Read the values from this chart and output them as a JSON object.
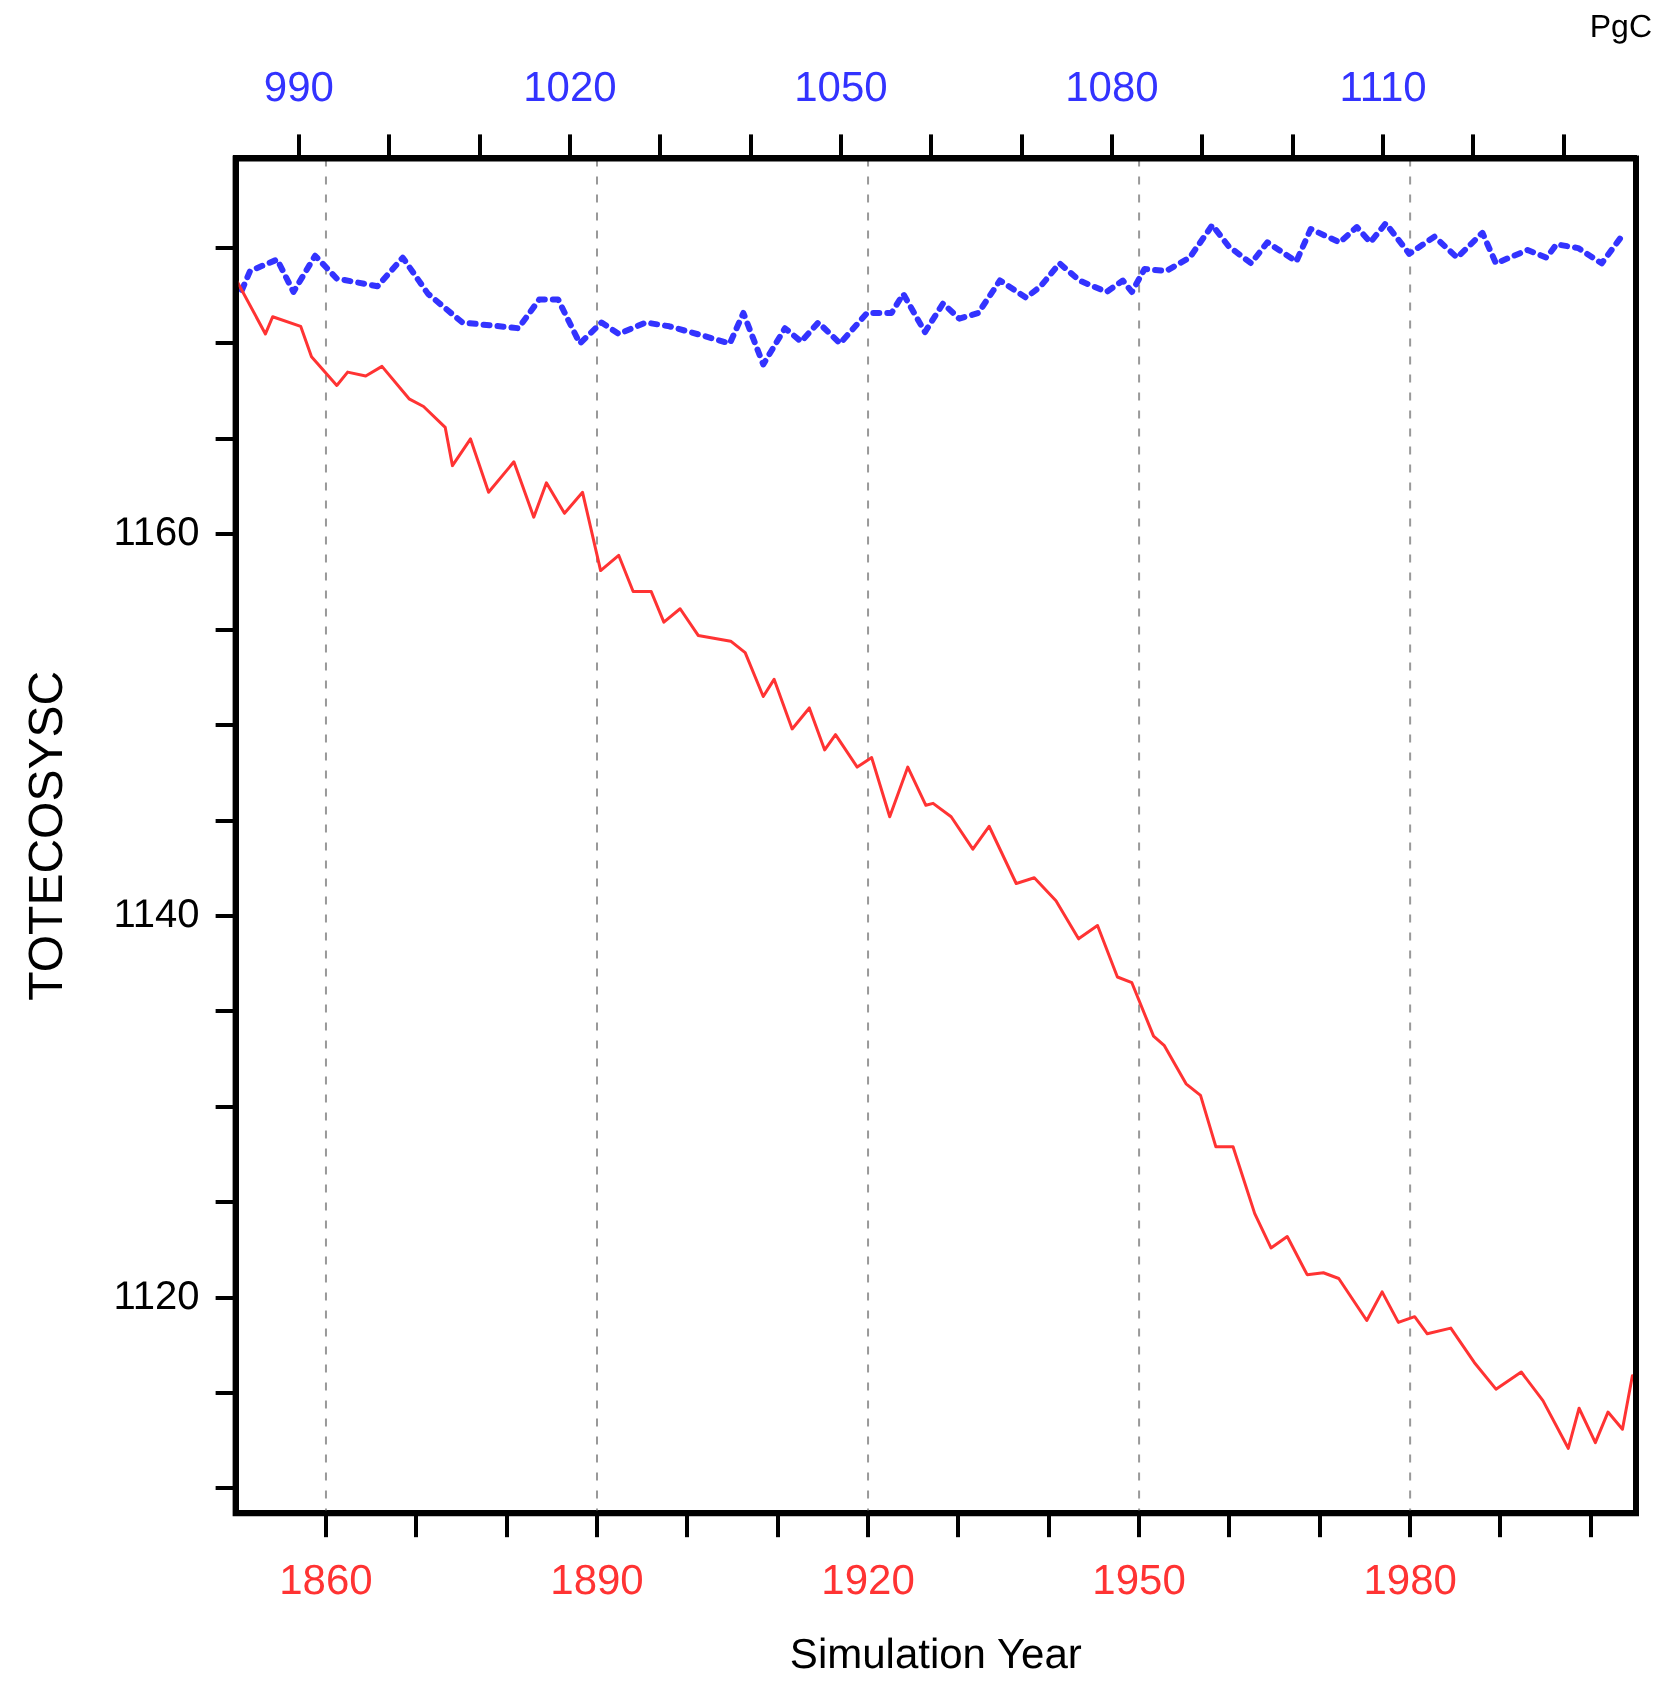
{
  "chart_data": {
    "type": "line",
    "xlabel": "Simulation Year",
    "ylabel": "TOTECOSYSC",
    "annotations": [
      "PgC"
    ],
    "xlim": [
      1850,
      2005
    ],
    "xticks": [
      1860,
      {
        "value": 1870,
        "label": null
      },
      {
        "value": 1880,
        "label": null
      },
      1890,
      {
        "value": 1900,
        "label": null
      },
      {
        "value": 1910,
        "label": null
      },
      1920,
      {
        "value": 1930,
        "label": null
      },
      {
        "value": 1940,
        "label": null
      },
      1950,
      {
        "value": 1960,
        "label": null
      },
      {
        "value": 1970,
        "label": null
      },
      1980,
      {
        "value": 1990,
        "label": null
      },
      {
        "value": 2000,
        "label": null
      }
    ],
    "x2lim": [
      983,
      1138
    ],
    "x2ticks": [
      990,
      {
        "value": 1000,
        "label": null
      },
      {
        "value": 1010,
        "label": null
      },
      1020,
      {
        "value": 1030,
        "label": null
      },
      {
        "value": 1040,
        "label": null
      },
      1050,
      {
        "value": 1060,
        "label": null
      },
      {
        "value": 1070,
        "label": null
      },
      1080,
      {
        "value": 1090,
        "label": null
      },
      {
        "value": 1100,
        "label": null
      },
      1110,
      {
        "value": 1120,
        "label": null
      },
      {
        "value": 1130,
        "label": null
      }
    ],
    "ylim": [
      1108.7,
      1179.7
    ],
    "yticks": [
      {
        "value": 1110,
        "label": null
      },
      {
        "value": 1115,
        "label": null
      },
      1120,
      {
        "value": 1125,
        "label": null
      },
      {
        "value": 1130,
        "label": null
      },
      {
        "value": 1135,
        "label": null
      },
      1140,
      {
        "value": 1145,
        "label": null
      },
      {
        "value": 1150,
        "label": null
      },
      {
        "value": 1155,
        "label": null
      },
      1160,
      {
        "value": 1165,
        "label": null
      },
      {
        "value": 1170,
        "label": null
      },
      {
        "value": 1175,
        "label": null
      }
    ],
    "grid": "x",
    "marker": "none",
    "series": [
      {
        "color": "#ff3333",
        "line_style": "solid",
        "x": [
          1850,
          1853.3,
          1854.1,
          1857.2,
          1858.4,
          1861.2,
          1862.4,
          1864.4,
          1866.2,
          1869.2,
          1870.8,
          1873.2,
          1874,
          1876,
          1878,
          1880.8,
          1883,
          1884.4,
          1886.4,
          1888.4,
          1890.4,
          1892.4,
          1894,
          1896,
          1897.4,
          1899.2,
          1901.2,
          1904.8,
          1906.4,
          1908.4,
          1909.6,
          1911.6,
          1913.5,
          1915.2,
          1916.4,
          1918.8,
          1920.4,
          1922.4,
          1924.4,
          1926.4,
          1927.2,
          1929.2,
          1931.6,
          1933.4,
          1936.4,
          1938.4,
          1940.8,
          1943.3,
          1945.4,
          1947.6,
          1949.2,
          1951.6,
          1952.8,
          1955.2,
          1956.8,
          1958.5,
          1960.4,
          1962.8,
          1964.6,
          1966.4,
          1968.6,
          1970.4,
          1972.1,
          1975.2,
          1976.9,
          1978.7,
          1980.5,
          1981.9,
          1984.5,
          1987.1,
          1989.5,
          1992.3,
          1994.7,
          1997.5,
          1998.7,
          2000.5,
          2001.9,
          2003.5,
          2004.6
        ],
        "values": [
          1173.4,
          1170.5,
          1171.4,
          1170.9,
          1169.3,
          1167.8,
          1168.5,
          1168.3,
          1168.8,
          1167.1,
          1166.7,
          1165.6,
          1163.6,
          1165.0,
          1162.2,
          1163.8,
          1160.9,
          1162.7,
          1161.1,
          1162.2,
          1158.1,
          1158.9,
          1157.0,
          1157.0,
          1155.4,
          1156.1,
          1154.7,
          1154.4,
          1153.8,
          1151.5,
          1152.4,
          1149.8,
          1150.9,
          1148.7,
          1149.5,
          1147.8,
          1148.3,
          1145.2,
          1147.8,
          1145.8,
          1145.9,
          1145.2,
          1143.5,
          1144.7,
          1141.7,
          1142.0,
          1140.8,
          1138.8,
          1139.5,
          1136.8,
          1136.5,
          1133.7,
          1133.2,
          1131.2,
          1130.6,
          1127.9,
          1127.9,
          1124.4,
          1122.6,
          1123.2,
          1121.2,
          1121.3,
          1121.0,
          1118.8,
          1120.3,
          1118.7,
          1119.0,
          1118.1,
          1118.4,
          1116.6,
          1115.2,
          1116.1,
          1114.6,
          1112.1,
          1114.2,
          1112.4,
          1114.0,
          1113.1,
          1115.9
        ]
      },
      {
        "color": "#3333ff",
        "line_style": "dotted",
        "axis": "x2",
        "x": [
          983.7,
          984.6,
          987.6,
          989.4,
          991.8,
          994.2,
          998.7,
          1001.5,
          1004.3,
          1008.1,
          1014.3,
          1016.6,
          1018.7,
          1021.1,
          1023.5,
          1025.4,
          1028.4,
          1031,
          1034.8,
          1037.7,
          1039.2,
          1041.4,
          1043.8,
          1045.6,
          1047.5,
          1049.9,
          1052.9,
          1055.6,
          1056.9,
          1059.3,
          1061.3,
          1063.1,
          1065.2,
          1067.6,
          1070.5,
          1072.1,
          1074.2,
          1076.4,
          1079.4,
          1081.2,
          1082.2,
          1083.6,
          1086,
          1088.6,
          1091.1,
          1092.9,
          1095.4,
          1097.2,
          1100.4,
          1102,
          1105.2,
          1107.1,
          1108.6,
          1110.3,
          1112.9,
          1115.7,
          1118.2,
          1121,
          1122.5,
          1126,
          1128.1,
          1129.2,
          1131.6,
          1134.2,
          1136.7
        ],
        "values": [
          1172.8,
          1173.8,
          1174.4,
          1172.7,
          1174.6,
          1173.4,
          1173.0,
          1174.5,
          1172.6,
          1171.1,
          1170.8,
          1172.3,
          1172.3,
          1170.0,
          1171.1,
          1170.5,
          1171.1,
          1170.9,
          1170.4,
          1170.0,
          1171.6,
          1168.9,
          1170.8,
          1170.1,
          1171.1,
          1170.0,
          1171.6,
          1171.6,
          1172.6,
          1170.6,
          1172.1,
          1171.3,
          1171.6,
          1173.3,
          1172.4,
          1173.0,
          1174.2,
          1173.3,
          1172.7,
          1173.3,
          1172.7,
          1173.9,
          1173.8,
          1174.5,
          1176.2,
          1175.1,
          1174.2,
          1175.3,
          1174.3,
          1176.0,
          1175.3,
          1176.1,
          1175.3,
          1176.3,
          1174.7,
          1175.6,
          1174.5,
          1175.8,
          1174.2,
          1174.9,
          1174.5,
          1175.2,
          1175.0,
          1174.2,
          1175.8
        ]
      }
    ]
  }
}
